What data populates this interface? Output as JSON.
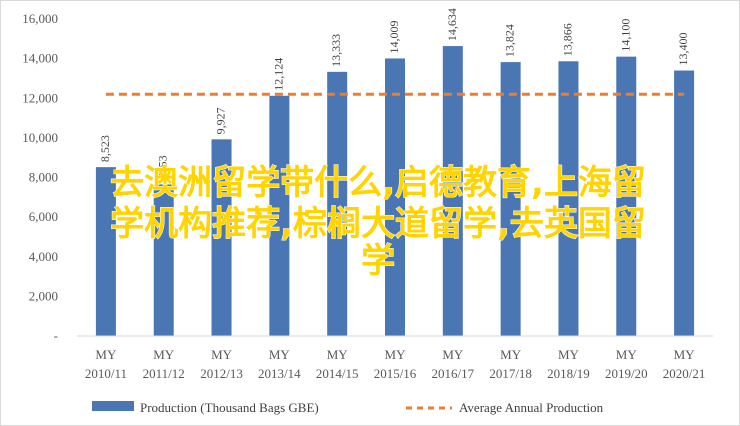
{
  "chart_data": {
    "type": "bar",
    "categories": [
      [
        "MY",
        "2010/11"
      ],
      [
        "MY",
        "2011/12"
      ],
      [
        "MY",
        "2012/13"
      ],
      [
        "MY",
        "2013/14"
      ],
      [
        "MY",
        "2014/15"
      ],
      [
        "MY",
        "2015/16"
      ],
      [
        "MY",
        "2016/17"
      ],
      [
        "MY",
        "2017/18"
      ],
      [
        "MY",
        "2018/19"
      ],
      [
        "MY",
        "2019/20"
      ],
      [
        "MY",
        "2020/21"
      ]
    ],
    "series": [
      {
        "name": "Production (Thousand Bags GBE)",
        "type": "bar",
        "values": [
          8523,
          7653,
          9927,
          12124,
          13333,
          14009,
          14634,
          13824,
          13866,
          14100,
          13400
        ],
        "data_labels": [
          "8,523",
          "7653",
          "9,927",
          "12,124",
          "13,333",
          "14,009",
          "14,634",
          "13,824",
          "13,866",
          "14,100",
          "13,400"
        ]
      },
      {
        "name": "Average Annual Production",
        "type": "line",
        "style": "dashed",
        "values": [
          12200,
          12200,
          12200,
          12200,
          12200,
          12200,
          12200,
          12200,
          12200,
          12200,
          12200
        ]
      }
    ],
    "y_ticks": [
      "-",
      "2,000",
      "4,000",
      "6,000",
      "8,000",
      "10,000",
      "12,000",
      "14,000",
      "16,000"
    ],
    "ylim": [
      0,
      16000
    ],
    "grid": false,
    "legend_position": "bottom",
    "colors": {
      "bar": "#4a77b4",
      "line": "#ed7d31"
    }
  },
  "overlay_text": [
    "去澳洲留学带什么,启德教育,上海留",
    "学机构推荐,棕榈大道留学,去英国留",
    "学"
  ]
}
